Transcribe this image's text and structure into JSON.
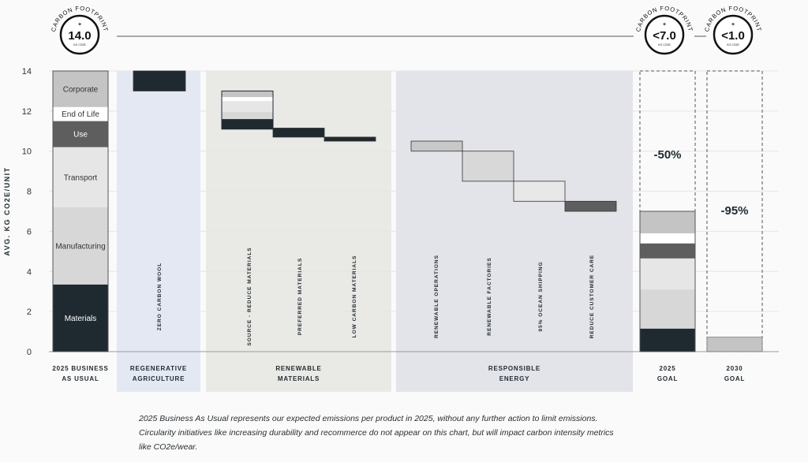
{
  "chart_data": {
    "type": "waterfall",
    "ylabel": "AVG. KG CO2E/UNIT",
    "ylim": [
      0,
      14
    ],
    "yticks": [
      0,
      2,
      4,
      6,
      8,
      10,
      12,
      14
    ],
    "badges": [
      {
        "label": "CARBON FOOTPRINT",
        "value": "14.0",
        "unit": "KG CO2E",
        "prefix": "+"
      },
      {
        "label": "CARBON FOOTPRINT",
        "value": "<7.0",
        "unit": "KG CO2E",
        "prefix": "+"
      },
      {
        "label": "CARBON FOOTPRINT",
        "value": "<1.0",
        "unit": "KG CO2E",
        "prefix": "+"
      }
    ],
    "stack_categories": [
      "Materials",
      "Manufacturing",
      "Transport",
      "Use",
      "End of Life",
      "Corporate"
    ],
    "stack_colors": {
      "Materials": "#1f2a30",
      "Manufacturing": "#d7d7d7",
      "Transport": "#e6e6e6",
      "Use": "#5e5e5e",
      "End of Life": "#ffffff",
      "Corporate": "#c4c4c4"
    },
    "groups": [
      {
        "label_lines": [
          "2025 BUSINESS",
          "AS USUAL"
        ],
        "bg": ""
      },
      {
        "label_lines": [
          "REGENERATIVE",
          "AGRICULTURE"
        ],
        "bg": "#e3e8f2"
      },
      {
        "label_lines": [
          "RENEWABLE",
          "MATERIALS"
        ],
        "bg": "#e9e9e5"
      },
      {
        "label_lines": [
          "RESPONSIBLE",
          "ENERGY"
        ],
        "bg": "#e3e3ea"
      },
      {
        "label_lines": [
          "2025",
          "GOAL"
        ],
        "bg": ""
      },
      {
        "label_lines": [
          "2030",
          "GOAL"
        ],
        "bg": ""
      }
    ],
    "baseline_stack": [
      {
        "category": "Materials",
        "value": 3.35,
        "label": "Materials"
      },
      {
        "category": "Manufacturing",
        "value": 3.85,
        "label": "Manufacturing"
      },
      {
        "category": "Transport",
        "value": 3.0,
        "label": "Transport"
      },
      {
        "category": "Use",
        "value": 1.3,
        "label": "Use"
      },
      {
        "category": "End of Life",
        "value": 0.7,
        "label": "End of Life"
      },
      {
        "category": "Corporate",
        "value": 1.8,
        "label": "Corporate"
      }
    ],
    "reductions": [
      {
        "label": "ZERO CARBON WOOL",
        "from": 14.0,
        "to": 13.0,
        "color": "#1f2a30"
      },
      {
        "label": "SOURCE - REDUCE MATERIALS",
        "from": 13.0,
        "to": 11.1,
        "segments": [
          {
            "category": "Materials",
            "value": 0.5
          },
          {
            "category": "Manufacturing",
            "value": 0.35
          },
          {
            "category": "Transport",
            "value": 0.55
          },
          {
            "category": "End of Life",
            "value": 0.2
          },
          {
            "category": "Corporate",
            "value": 0.3
          }
        ]
      },
      {
        "label": "PREFERRED MATERIALS",
        "from": 11.15,
        "to": 10.7,
        "color": "#1f2a30"
      },
      {
        "label": "LOW CARBON MATERIALS",
        "from": 10.7,
        "to": 10.5,
        "color": "#1f2a30"
      },
      {
        "label": "RENEWABLE OPERATIONS",
        "from": 10.5,
        "to": 10.0,
        "color": "#c8c8c8"
      },
      {
        "label": "RENEWABLE  FACTORIES",
        "from": 10.0,
        "to": 8.5,
        "color": "#d8d8d8"
      },
      {
        "label": "95% OCEAN SHIPPING",
        "from": 8.5,
        "to": 7.5,
        "color": "#e8e8e8"
      },
      {
        "label": "REDUCE CUSTOMER CARE",
        "from": 7.5,
        "to": 7.0,
        "color": "#5e5e5e"
      }
    ],
    "goal_2025_stack": [
      {
        "category": "Materials",
        "value": 1.15
      },
      {
        "category": "Manufacturing",
        "value": 1.95
      },
      {
        "category": "Transport",
        "value": 1.55
      },
      {
        "category": "Use",
        "value": 0.75
      },
      {
        "category": "End of Life",
        "value": 0.5
      },
      {
        "category": "Corporate",
        "value": 1.1
      }
    ],
    "goal_2025_pct": "-50%",
    "goal_2030": {
      "value": 0.72,
      "color": "#c4c4c4"
    },
    "goal_2030_pct": "-95%"
  },
  "footnote": "2025 Business As Usual represents our expected emissions per product in 2025, without any further action to limit emissions. Circularity initiatives like increasing durability and recommerce do not appear on this chart, but will impact carbon intensity metrics like CO2e/wear."
}
